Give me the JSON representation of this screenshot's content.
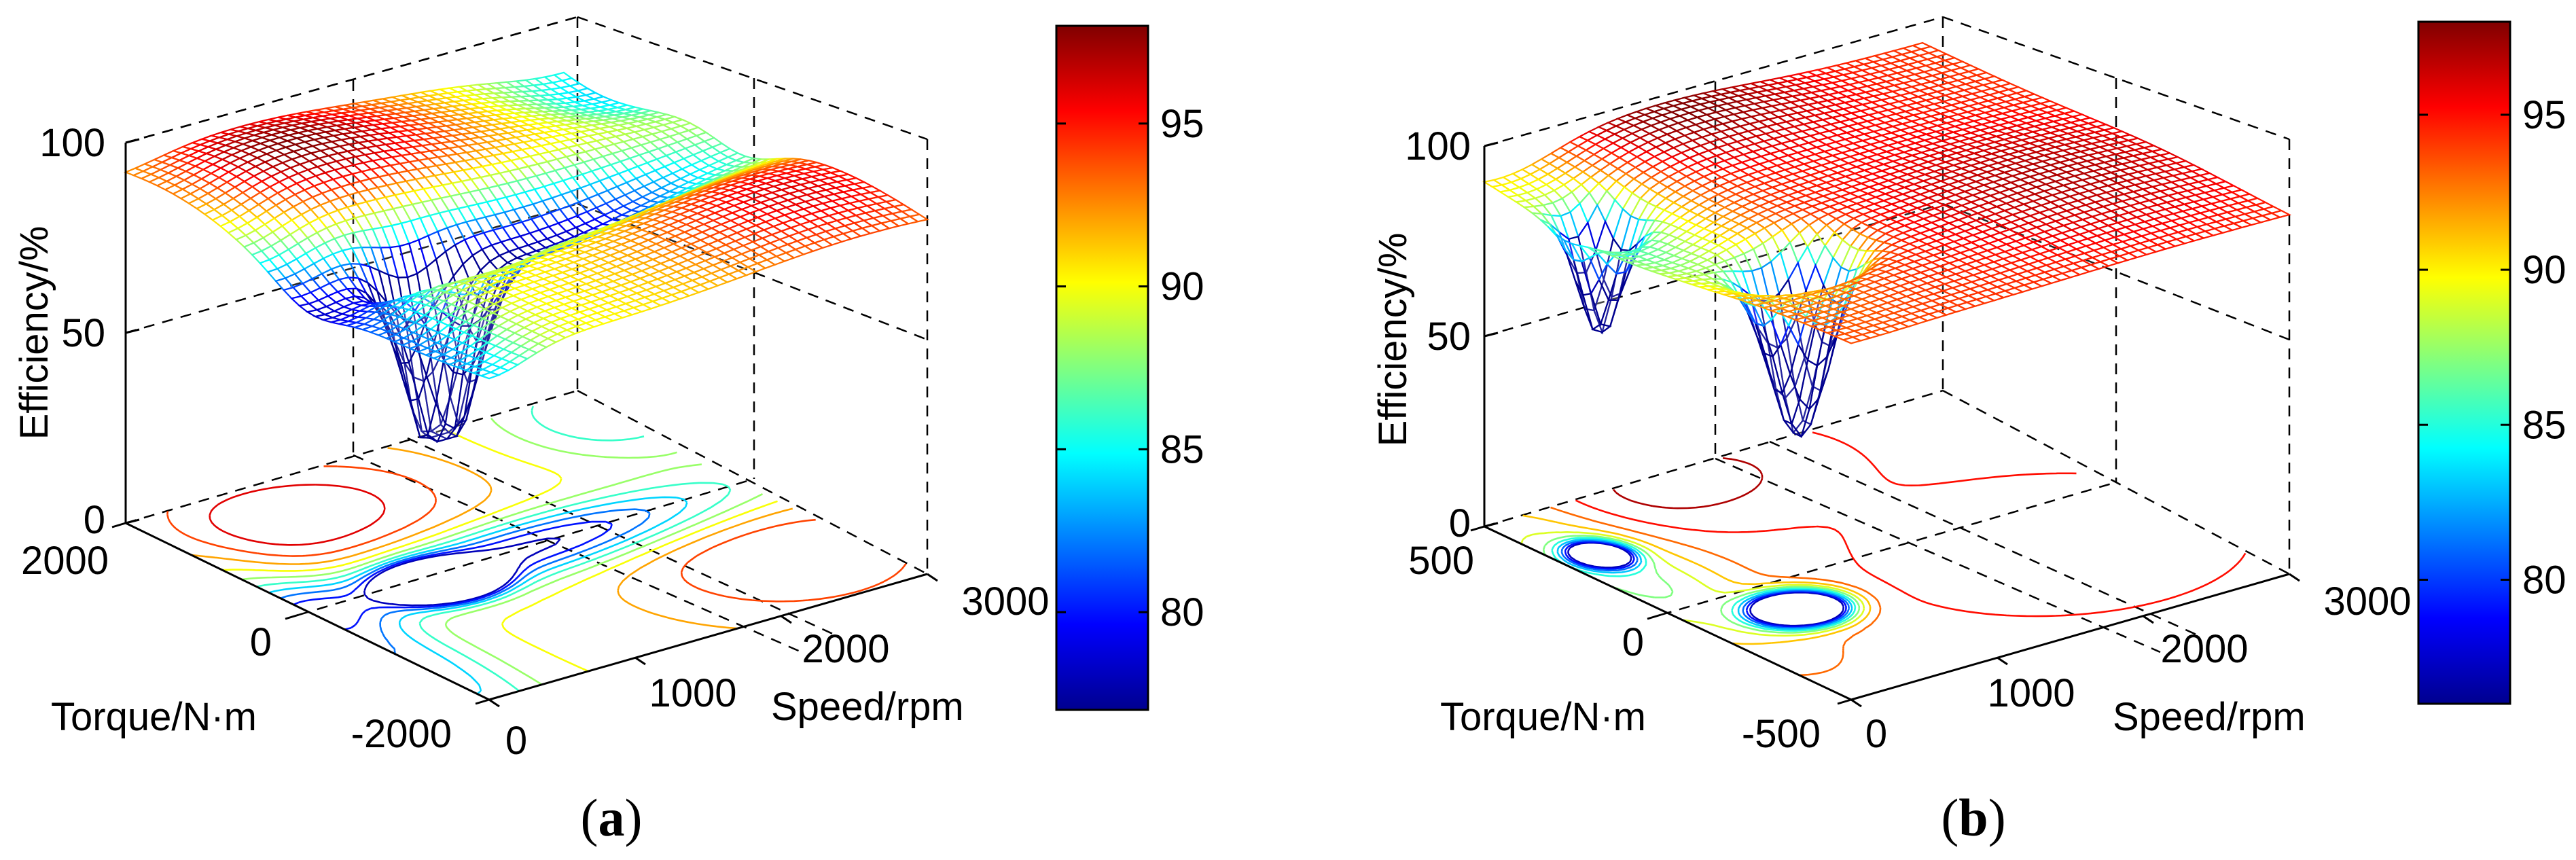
{
  "chart_data": [
    {
      "type": "surface",
      "panel_label": "a",
      "title": "",
      "xlabel": "Speed/rpm",
      "ylabel": "Torque/N·m",
      "zlabel": "Efficiency/%",
      "xlim": [
        0,
        3000
      ],
      "ylim": [
        -2000,
        2000
      ],
      "zlim": [
        0,
        100
      ],
      "xticks": [
        "0",
        "1000",
        "2000",
        "3000"
      ],
      "yticks": [
        "-2000",
        "0",
        "2000"
      ],
      "zticks": [
        "0",
        "50",
        "100"
      ],
      "colorbar": {
        "ticks": [
          "80",
          "85",
          "90",
          "95"
        ],
        "range": [
          77,
          98
        ]
      },
      "grid": true,
      "z_range": [
        38,
        98
      ],
      "features": "high-efficiency ridges (~95-98%) at high torque and high speed, trough (~38%) near zero torque at mid speed; contour projection on the floor"
    },
    {
      "type": "surface",
      "panel_label": "b",
      "title": "",
      "xlabel": "Speed/rpm",
      "ylabel": "Torque/N·m",
      "zlabel": "Efficiency/%",
      "xlim": [
        0,
        3000
      ],
      "ylim": [
        -500,
        500
      ],
      "zlim": [
        0,
        100
      ],
      "xticks": [
        "0",
        "1000",
        "2000",
        "3000"
      ],
      "yticks": [
        "-500",
        "0",
        "500"
      ],
      "zticks": [
        "0",
        "50",
        "100"
      ],
      "colorbar": {
        "ticks": [
          "80",
          "85",
          "90",
          "95"
        ],
        "range": [
          76,
          98
        ]
      },
      "grid": true,
      "z_range": [
        45,
        98
      ],
      "features": "broad high-efficiency plateau (~93-98%), peak near high speed / high torque, trough (~45%) near zero torque at low-mid speed; contour projection on the floor"
    }
  ],
  "colors": {
    "colormap": [
      "#00008f",
      "#0000ff",
      "#0080ff",
      "#00ffff",
      "#80ff80",
      "#ffff00",
      "#ff8000",
      "#ff0000",
      "#800000"
    ],
    "axes": "#000000",
    "background": "#ffffff"
  }
}
